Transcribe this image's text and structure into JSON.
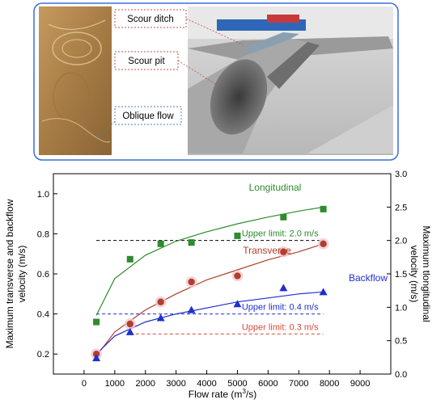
{
  "photo_labels": {
    "scour_ditch": "Scour ditch",
    "scour_pit": "Scour pit",
    "oblique_flow": "Oblique flow"
  },
  "chart_data": {
    "type": "scatter",
    "xlabel_main": "Flow rate (m",
    "xlabel_sup": "3",
    "xlabel_end": "/s)",
    "ylabel_left_line1": "Maximum transverse and backflow",
    "ylabel_left_line2": "velocity (m/s)",
    "ylabel_right_line1": "Maximum tlongitudinal",
    "ylabel_right_line2": "velocity (m/s)",
    "x_ticks": [
      "0",
      "1000",
      "2000",
      "3000",
      "4000",
      "5000",
      "6000",
      "7000",
      "8000",
      "9000"
    ],
    "x_tick_values": [
      0,
      1000,
      2000,
      3000,
      4000,
      5000,
      6000,
      7000,
      8000,
      9000
    ],
    "y_left_ticks": [
      "0.2",
      "0.4",
      "0.6",
      "0.8",
      "1.0"
    ],
    "y_left_tick_values": [
      0.2,
      0.4,
      0.6,
      0.8,
      1.0
    ],
    "y_right_ticks": [
      "0.0",
      "0.5",
      "1.0",
      "1.5",
      "2.0",
      "2.5",
      "3.0"
    ],
    "y_right_tick_values": [
      0.0,
      0.5,
      1.0,
      1.5,
      2.0,
      2.5,
      3.0
    ],
    "xlim": [
      -1000,
      10000
    ],
    "ylim_left": [
      0.1,
      1.1
    ],
    "ylim_right": [
      0.0,
      3.0
    ],
    "series": [
      {
        "name": "Longitudinal",
        "axis": "right",
        "marker": "square",
        "color": "#2e8b2e",
        "x": [
          400,
          1500,
          2500,
          3500,
          5000,
          6500,
          7800
        ],
        "y": [
          0.78,
          1.72,
          1.95,
          1.97,
          2.07,
          2.35,
          2.47
        ],
        "fit": {
          "x": [
            400,
            1000,
            2000,
            3000,
            4000,
            5000,
            6000,
            7000,
            7800
          ],
          "y": [
            0.88,
            1.43,
            1.78,
            1.99,
            2.13,
            2.25,
            2.35,
            2.44,
            2.5
          ]
        }
      },
      {
        "name": "Transverse",
        "axis": "left",
        "marker": "circle",
        "color": "#b0402a",
        "x": [
          400,
          1500,
          2500,
          3500,
          5000,
          6500,
          7800
        ],
        "y": [
          0.2,
          0.35,
          0.46,
          0.56,
          0.59,
          0.71,
          0.75
        ],
        "fit": {
          "x": [
            400,
            1000,
            2000,
            3000,
            4000,
            5000,
            6000,
            7000,
            7800
          ],
          "y": [
            0.19,
            0.31,
            0.42,
            0.5,
            0.57,
            0.62,
            0.67,
            0.71,
            0.75
          ]
        }
      },
      {
        "name": "Backflow",
        "axis": "left",
        "marker": "triangle",
        "color": "#1f2fd0",
        "x": [
          400,
          1500,
          2500,
          3500,
          5000,
          6500,
          7800
        ],
        "y": [
          0.18,
          0.31,
          0.38,
          0.42,
          0.45,
          0.53,
          0.51
        ],
        "fit": {
          "x": [
            400,
            1000,
            2000,
            3000,
            4000,
            5000,
            6000,
            7000,
            7800
          ],
          "y": [
            0.2,
            0.29,
            0.36,
            0.4,
            0.43,
            0.46,
            0.48,
            0.5,
            0.51
          ]
        }
      }
    ],
    "limits": [
      {
        "label": "Upper limit: 2.0 m/s",
        "axis": "right",
        "value": 2.0,
        "color": "#2e8b2e",
        "x_range": [
          400,
          7800
        ]
      },
      {
        "label": "Upper limit: 0.4 m/s",
        "axis": "left",
        "value": 0.4,
        "color": "#1f2fd0",
        "x_range": [
          400,
          7800
        ]
      },
      {
        "label": "Upper limit: 0.3 m/s",
        "axis": "left",
        "value": 0.3,
        "color": "#d64a3a",
        "x_range": [
          1500,
          7800
        ]
      }
    ]
  }
}
